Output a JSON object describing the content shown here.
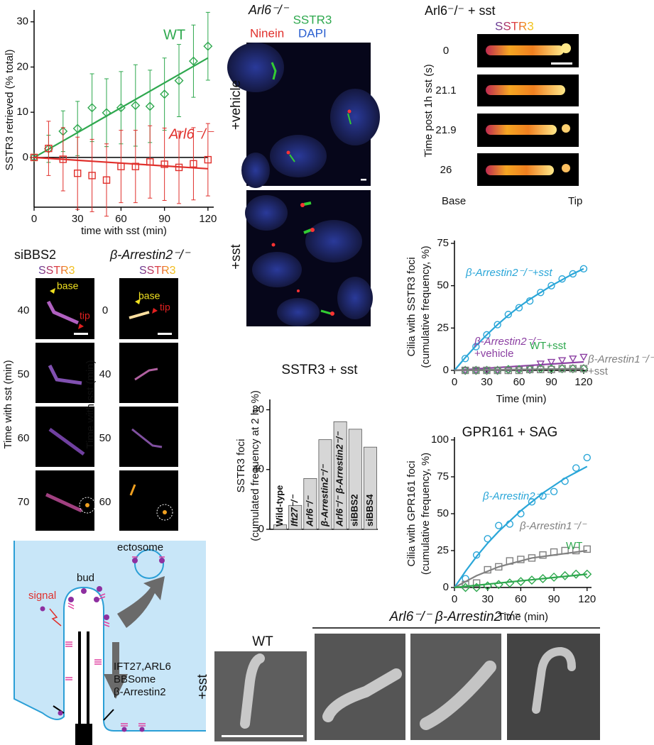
{
  "chart_data": [
    {
      "type": "line",
      "y_label": "SSTR3 retrieved (% total)",
      "x_label": "time with sst (min)",
      "x": [
        0,
        10,
        20,
        30,
        40,
        50,
        60,
        70,
        80,
        90,
        100,
        110,
        120
      ],
      "xlim": [
        0,
        124
      ],
      "ylim": [
        -11,
        32
      ],
      "xticks": [
        0,
        30,
        60,
        90,
        120
      ],
      "yticks": [
        0,
        10,
        20,
        30
      ],
      "zero_line": true,
      "series": [
        {
          "name": "WT",
          "color": "#2ea84e",
          "marker": "diamond",
          "values": [
            0,
            1.9,
            5.8,
            6.4,
            11,
            9.9,
            11,
            11.5,
            11.3,
            14,
            17,
            21.3,
            24.6
          ],
          "errors": [
            0,
            3,
            4.5,
            6,
            7.5,
            7.5,
            8,
            9,
            8,
            8,
            8,
            8,
            7.5
          ],
          "fit": {
            "x": [
              0,
              120
            ],
            "values": [
              0,
              22
            ]
          }
        },
        {
          "name": "Arl6⁻/⁻",
          "color": "#e0302c",
          "marker": "square",
          "values": [
            0,
            2,
            -0.4,
            -3.5,
            -4,
            -5,
            -2,
            -2,
            -1,
            -1.5,
            -2.2,
            -1.4,
            -0.5
          ],
          "errors": [
            0,
            6,
            7,
            8,
            8,
            8,
            8,
            8,
            8,
            8,
            8,
            8,
            8
          ],
          "fit": {
            "x": [
              0,
              120
            ],
            "values": [
              0,
              -2.5
            ]
          }
        }
      ]
    },
    {
      "type": "bar",
      "title": "SSTR3 + sst",
      "y_label": [
        "SSTR3 foci",
        "(cumulated frequency at 2 h, %)"
      ],
      "categories": [
        "Wild-type",
        "Ift27⁻/⁻",
        "Arl6⁻/⁻",
        "β-Arrestin2⁻/⁻",
        "Arl6⁻/⁻ β-Arrestin2⁻/⁻",
        "siBBS2",
        "siBBS4"
      ],
      "values": [
        3,
        16,
        34,
        60,
        72,
        67,
        55
      ],
      "color": "#d6d6d6",
      "ylim": [
        0,
        85
      ],
      "yticks": [
        0,
        40,
        80
      ]
    },
    {
      "type": "scatter",
      "y_label": [
        "Cilia with SSTR3 foci",
        "(cumulative frequency, %)"
      ],
      "x_label": "Time (min)",
      "x": [
        10,
        20,
        30,
        40,
        50,
        60,
        70,
        80,
        90,
        100,
        110,
        120
      ],
      "xlim": [
        0,
        124
      ],
      "ylim": [
        0,
        75
      ],
      "xticks": [
        0,
        30,
        60,
        90,
        120
      ],
      "yticks": [
        0,
        25,
        50,
        75
      ],
      "series": [
        {
          "name": [
            "β-Arrestin2⁻/⁻+sst"
          ],
          "color": "#2aa6d8",
          "marker": "circle",
          "values": [
            7,
            14,
            21,
            27,
            33,
            37,
            41,
            46,
            50,
            54,
            57,
            60
          ],
          "fit": {
            "x": [
              0,
              10,
              20,
              30,
              40,
              50,
              60,
              70,
              80,
              90,
              100,
              110,
              120
            ],
            "values": [
              0,
              7.5,
              14.5,
              21,
              27,
              32.5,
              37.5,
              42,
              46,
              50,
              53.5,
              57,
              60
            ]
          }
        },
        {
          "name": [
            "β-Arrestin2⁻/⁻",
            "+vehicle"
          ],
          "color": "#8b3fa2",
          "marker": "triangle",
          "values": [
            0,
            0,
            0,
            0,
            0,
            1,
            1,
            4,
            5,
            6,
            7,
            8
          ],
          "fit": {
            "x": [
              0,
              120
            ],
            "values": [
              0,
              5
            ]
          }
        },
        {
          "name": [
            "WT+sst"
          ],
          "color": "#2ea84e",
          "marker": "diamond",
          "values": [
            0,
            0,
            0,
            0,
            0.5,
            0.5,
            0.5,
            1,
            1,
            1,
            1,
            1
          ],
          "fit": {
            "x": [
              0,
              120
            ],
            "values": [
              0,
              1
            ]
          }
        },
        {
          "name": [
            "β-Arrestin1⁻/⁻",
            "+sst"
          ],
          "color": "#808080",
          "marker": "square",
          "values": [
            0,
            0,
            0,
            0,
            0,
            0,
            0.5,
            0.5,
            0.5,
            1,
            1,
            1
          ],
          "fit": {
            "x": [
              0,
              120
            ],
            "values": [
              0,
              1
            ]
          }
        }
      ]
    },
    {
      "type": "scatter",
      "title": "GPR161 + SAG",
      "y_label": [
        "Cilia with GPR161 foci",
        "(cumulative frequency, %)"
      ],
      "x_label": "Time (min)",
      "x": [
        10,
        20,
        30,
        40,
        50,
        60,
        70,
        80,
        90,
        100,
        110,
        120
      ],
      "xlim": [
        0,
        124
      ],
      "ylim": [
        0,
        100
      ],
      "xticks": [
        0,
        30,
        60,
        90,
        120
      ],
      "yticks": [
        0,
        25,
        50,
        75,
        100
      ],
      "series": [
        {
          "name": [
            "β-Arrestin2⁻/⁻"
          ],
          "color": "#2aa6d8",
          "marker": "circle",
          "values": [
            6,
            22,
            33,
            42,
            43,
            50,
            58,
            62,
            65,
            72,
            81,
            88
          ],
          "fit": {
            "x": [
              0,
              10,
              20,
              30,
              40,
              50,
              60,
              70,
              80,
              90,
              100,
              110,
              120
            ],
            "values": [
              0,
              11,
              21,
              30,
              38,
              45,
              52,
              58,
              64,
              69,
              74,
              78,
              82
            ]
          }
        },
        {
          "name": [
            "β-Arrestin1⁻/⁻"
          ],
          "color": "#808080",
          "marker": "square",
          "values": [
            2,
            3,
            12,
            14,
            18,
            19,
            20,
            22,
            24,
            25,
            25,
            26
          ],
          "fit": {
            "x": [
              0,
              10,
              20,
              30,
              40,
              50,
              60,
              70,
              80,
              90,
              100,
              110,
              120
            ],
            "values": [
              0,
              4,
              8,
              11,
              14,
              16,
              18,
              20,
              21,
              22,
              23,
              24,
              25
            ]
          }
        },
        {
          "name": [
            "WT"
          ],
          "color": "#2ea84e",
          "marker": "diamond",
          "values": [
            0,
            0,
            1,
            2,
            3,
            4,
            5,
            6,
            7,
            8,
            9,
            9
          ],
          "fit": {
            "x": [
              0,
              120
            ],
            "values": [
              0,
              9
            ]
          }
        }
      ]
    }
  ],
  "panels": {
    "arl6": {
      "title": "Arl6⁻/⁻",
      "stain_sstr3": "SSTR3",
      "stain_ninein": "Ninein",
      "stain_dapi": "DAPI",
      "row_labels": [
        "+vehicle",
        "+sst"
      ]
    },
    "timelapse": {
      "title": "Arl6⁻/⁻ + sst",
      "channel": "SSTR3",
      "times": [
        "0",
        "21.1",
        "21.9",
        "26"
      ],
      "axis_label": "Time post 1h sst (s)",
      "base": "Base",
      "tip": "Tip"
    },
    "sibbs2": {
      "title": "siBBS2",
      "channel": "SSTR3",
      "base": "base",
      "tip": "tip",
      "times": [
        "40",
        "50",
        "60",
        "70"
      ],
      "axis_label": "Time with sst (min)"
    },
    "barr2": {
      "title": "β-Arrestin2⁻/⁻",
      "channel": "SSTR3",
      "base": "base",
      "tip": "tip",
      "times": [
        "0",
        "40",
        "50",
        "60"
      ],
      "axis_label": "Time with sst (min)"
    }
  },
  "diagram": {
    "ectosome": "ectosome",
    "bud": "bud",
    "signal": "signal",
    "machinery": [
      "IFT27,ARL6",
      "BBSome",
      "β-Arrestin2"
    ]
  },
  "em": {
    "wt": "WT",
    "mutant": "Arl6⁻/⁻ β-Arrestin2⁻/⁻",
    "condition": "+sst"
  }
}
